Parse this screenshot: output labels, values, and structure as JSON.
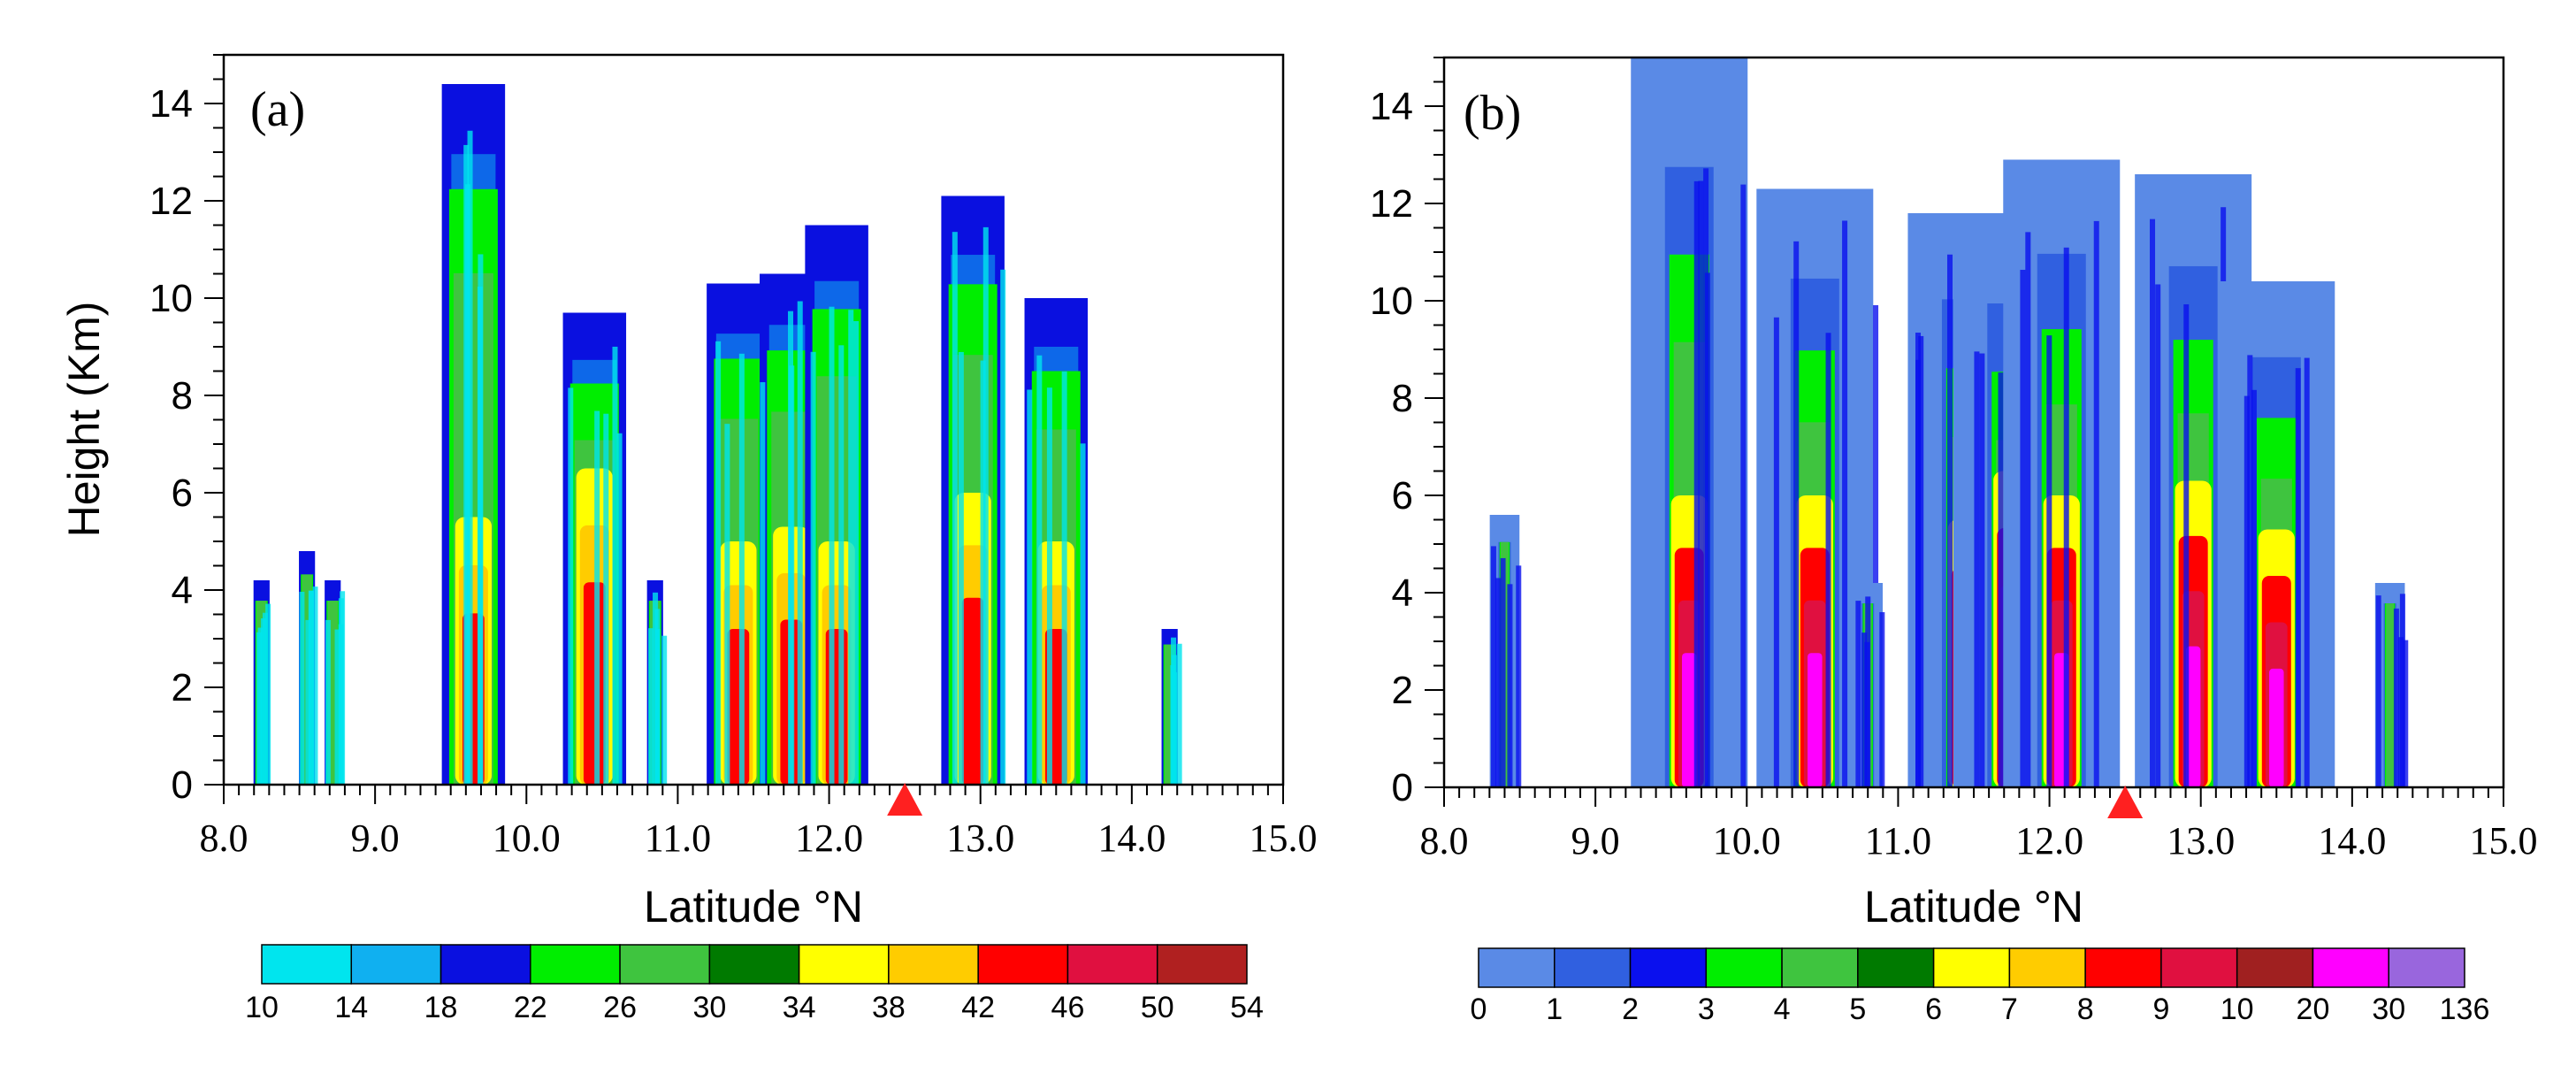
{
  "chart_data": [
    {
      "type": "heatmap",
      "panel_label": "(a)",
      "xlabel": "Latitude °N",
      "ylabel": "Height (Km)",
      "xlim": [
        8.0,
        15.0
      ],
      "ylim": [
        0,
        15
      ],
      "x_tick_labels": [
        "8.0",
        "9.0",
        "10.0",
        "11.0",
        "12.0",
        "13.0",
        "14.0",
        "15.0"
      ],
      "y_tick_labels": [
        "0",
        "2",
        "4",
        "6",
        "8",
        "10",
        "12",
        "14"
      ],
      "colorbar_levels": [
        "10",
        "14",
        "18",
        "22",
        "26",
        "30",
        "34",
        "38",
        "42",
        "46",
        "50",
        "54"
      ],
      "colorbar_colors": [
        "#00e5ee",
        "#10b0f0",
        "#0a10e0",
        "#00ee00",
        "#3fc43f",
        "#007a00",
        "#ffff00",
        "#ffcc00",
        "#ff0000",
        "#e01040",
        "#b02020"
      ],
      "marker_latitude": 12.5,
      "marker_color": "#ff2020",
      "columns": [
        {
          "lat": 8.25,
          "top": 4.2,
          "core": 0
        },
        {
          "lat": 8.55,
          "top": 4.8,
          "core": 0
        },
        {
          "lat": 8.72,
          "top": 4.2,
          "core": 0
        },
        {
          "lat": 9.65,
          "top": 14.4,
          "core": 5.5
        },
        {
          "lat": 10.45,
          "top": 9.7,
          "core": 6.5
        },
        {
          "lat": 10.85,
          "top": 4.2,
          "core": 0
        },
        {
          "lat": 11.4,
          "top": 10.3,
          "core": 5.0
        },
        {
          "lat": 11.75,
          "top": 10.5,
          "core": 5.3
        },
        {
          "lat": 12.05,
          "top": 11.5,
          "core": 5.0
        },
        {
          "lat": 12.95,
          "top": 12.1,
          "core": 6.0
        },
        {
          "lat": 13.5,
          "top": 10.0,
          "core": 5.0
        },
        {
          "lat": 14.25,
          "top": 3.2,
          "core": 0
        }
      ]
    },
    {
      "type": "heatmap",
      "panel_label": "(b)",
      "xlabel": "Latitude °N",
      "ylabel": "",
      "xlim": [
        8.0,
        15.0
      ],
      "ylim": [
        0,
        15
      ],
      "x_tick_labels": [
        "8.0",
        "9.0",
        "10.0",
        "11.0",
        "12.0",
        "13.0",
        "14.0",
        "15.0"
      ],
      "y_tick_labels": [
        "0",
        "2",
        "4",
        "6",
        "8",
        "10",
        "12",
        "14"
      ],
      "colorbar_levels": [
        "0",
        "1",
        "2",
        "3",
        "4",
        "5",
        "6",
        "7",
        "8",
        "9",
        "10",
        "20",
        "30",
        "136"
      ],
      "colorbar_colors": [
        "#5a8ae6",
        "#3060e0",
        "#0a10ee",
        "#00ee00",
        "#3fc43f",
        "#007a00",
        "#ffff00",
        "#ffcc00",
        "#ff0000",
        "#e01040",
        "#a02020",
        "#ff00ff",
        "#9966dd"
      ],
      "marker_latitude": 12.5,
      "marker_color": "#ff2020",
      "columns": [
        {
          "lat": 8.4,
          "top": 5.6,
          "core": 0
        },
        {
          "lat": 9.62,
          "top": 15.0,
          "core": 6.0
        },
        {
          "lat": 10.45,
          "top": 12.3,
          "core": 6.0
        },
        {
          "lat": 10.8,
          "top": 4.2,
          "core": 0
        },
        {
          "lat": 11.45,
          "top": 11.8,
          "core": 5.5
        },
        {
          "lat": 11.75,
          "top": 11.7,
          "core": 6.5
        },
        {
          "lat": 12.08,
          "top": 12.9,
          "core": 6.0
        },
        {
          "lat": 12.95,
          "top": 12.6,
          "core": 6.3
        },
        {
          "lat": 13.5,
          "top": 10.4,
          "core": 5.3
        },
        {
          "lat": 14.25,
          "top": 4.2,
          "core": 0
        }
      ]
    }
  ]
}
